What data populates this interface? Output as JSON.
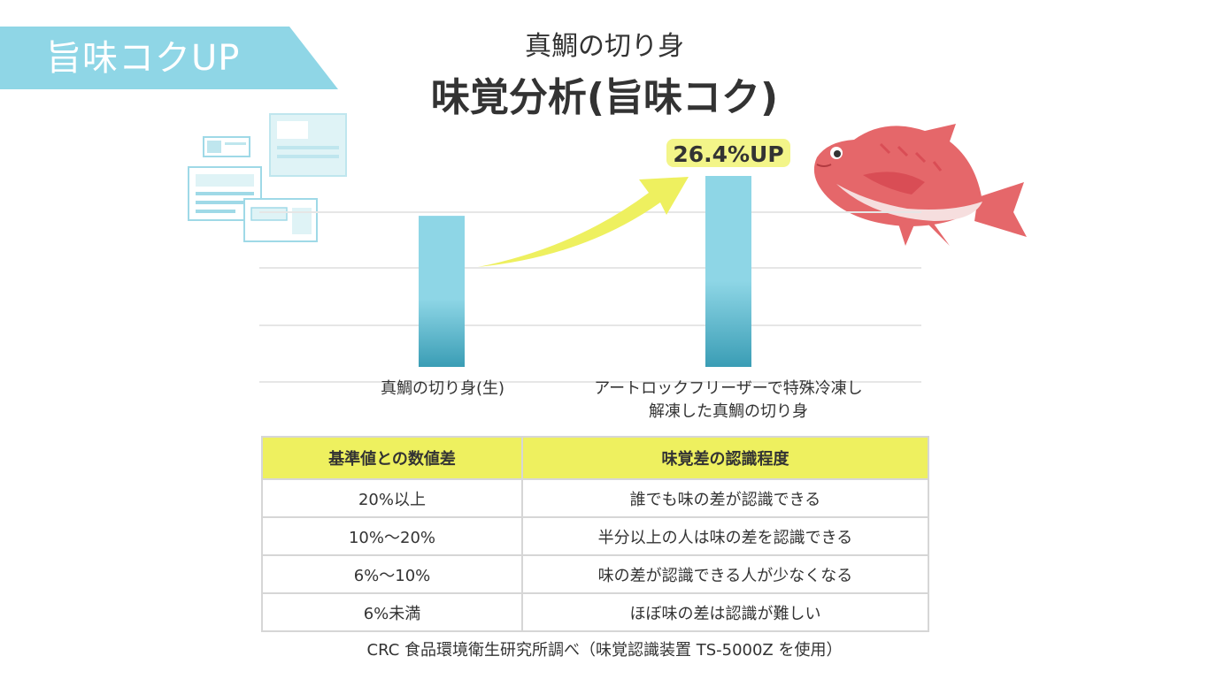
{
  "tag": {
    "label": "旨味コクUP"
  },
  "header": {
    "subtitle": "真鯛の切り身",
    "title": "味覚分析(旨味コク)"
  },
  "chart_data": {
    "type": "bar",
    "title": "味覚分析(旨味コク)",
    "categories": [
      "真鯛の切り身(生)",
      "アートロックフリーザーで特殊冷凍し解凍した真鯛の切り身"
    ],
    "category_lines": [
      [
        "真鯛の切り身(生)"
      ],
      [
        "アートロックフリーザーで特殊冷凍し",
        "解凍した真鯛の切り身"
      ]
    ],
    "values": [
      100,
      126.4
    ],
    "grid": true,
    "annotation": "26.4%UP",
    "bar_colors": [
      "#8ed6e6",
      "#3a9db5"
    ],
    "arrow_color": "#eef05f"
  },
  "table": {
    "headers": [
      "基準値との数値差",
      "味覚差の認識程度"
    ],
    "rows": [
      [
        "20%以上",
        "誰でも味の差が認識できる"
      ],
      [
        "10%〜20%",
        "半分以上の人は味の差を認識できる"
      ],
      [
        "6%〜10%",
        "味の差が認識できる人が少なくなる"
      ],
      [
        "6%未満",
        "ほぼ味の差は認識が難しい"
      ]
    ]
  },
  "footnote": "CRC 食品環境衛生研究所調べ（味覚認識装置 TS-5000Z を使用）",
  "colors": {
    "accent_cyan": "#8fd6e6",
    "highlight_yellow": "#eef05f",
    "fish_red": "#e5676a"
  }
}
